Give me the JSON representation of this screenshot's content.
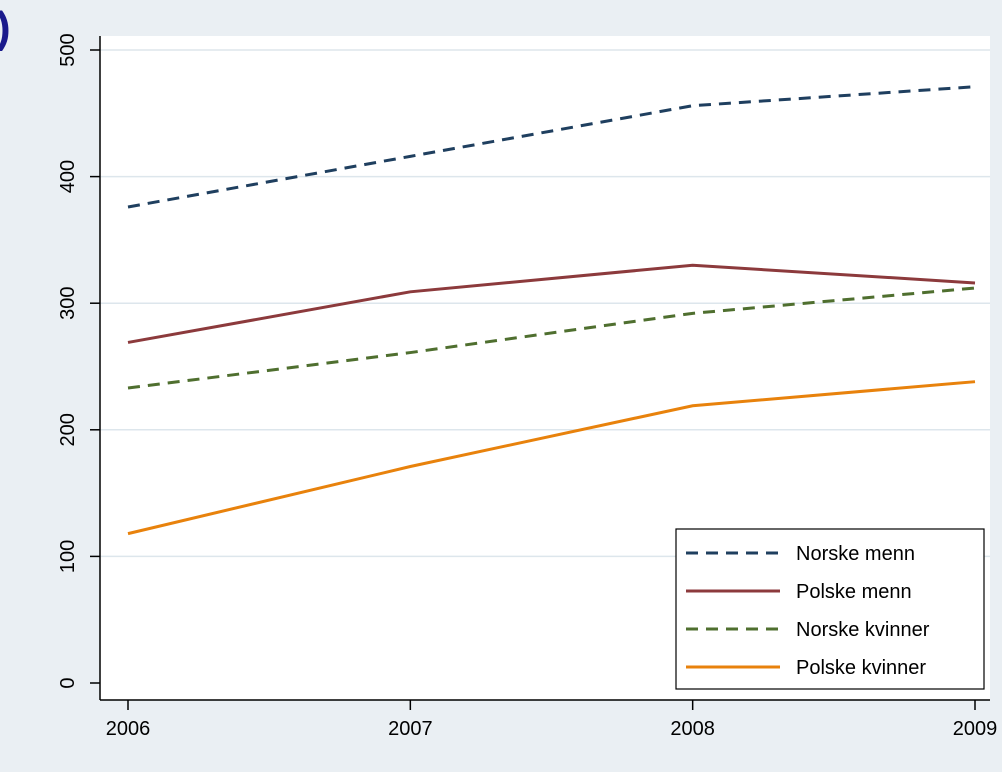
{
  "chart_data": {
    "type": "line",
    "title": "",
    "xlabel": "",
    "ylabel": "",
    "panel_mark": ")",
    "x": [
      2006,
      2007,
      2008,
      2009
    ],
    "x_tick_labels": [
      "2006",
      "2007",
      "2008",
      "2009"
    ],
    "xlim": [
      2006,
      2009
    ],
    "ylim": [
      0,
      500
    ],
    "y_ticks": [
      0,
      100,
      200,
      300,
      400,
      500
    ],
    "y_tick_labels": [
      "0",
      "100",
      "200",
      "300",
      "400",
      "500"
    ],
    "grid": true,
    "legend_position": "bottom-right",
    "series": [
      {
        "name": "Norske menn",
        "values": [
          376,
          416,
          456,
          471
        ],
        "color": "#1f3f5f",
        "dash": "dashed"
      },
      {
        "name": "Polske menn",
        "values": [
          269,
          309,
          330,
          316
        ],
        "color": "#8c3a3c",
        "dash": "solid"
      },
      {
        "name": "Norske kvinner",
        "values": [
          233,
          261,
          292,
          312
        ],
        "color": "#4f6f2f",
        "dash": "dashed"
      },
      {
        "name": "Polske kvinner",
        "values": [
          118,
          171,
          219,
          238
        ],
        "color": "#e8820c",
        "dash": "solid"
      }
    ],
    "background_color": "#eaeff3",
    "plot_background_color": "#ffffff"
  }
}
